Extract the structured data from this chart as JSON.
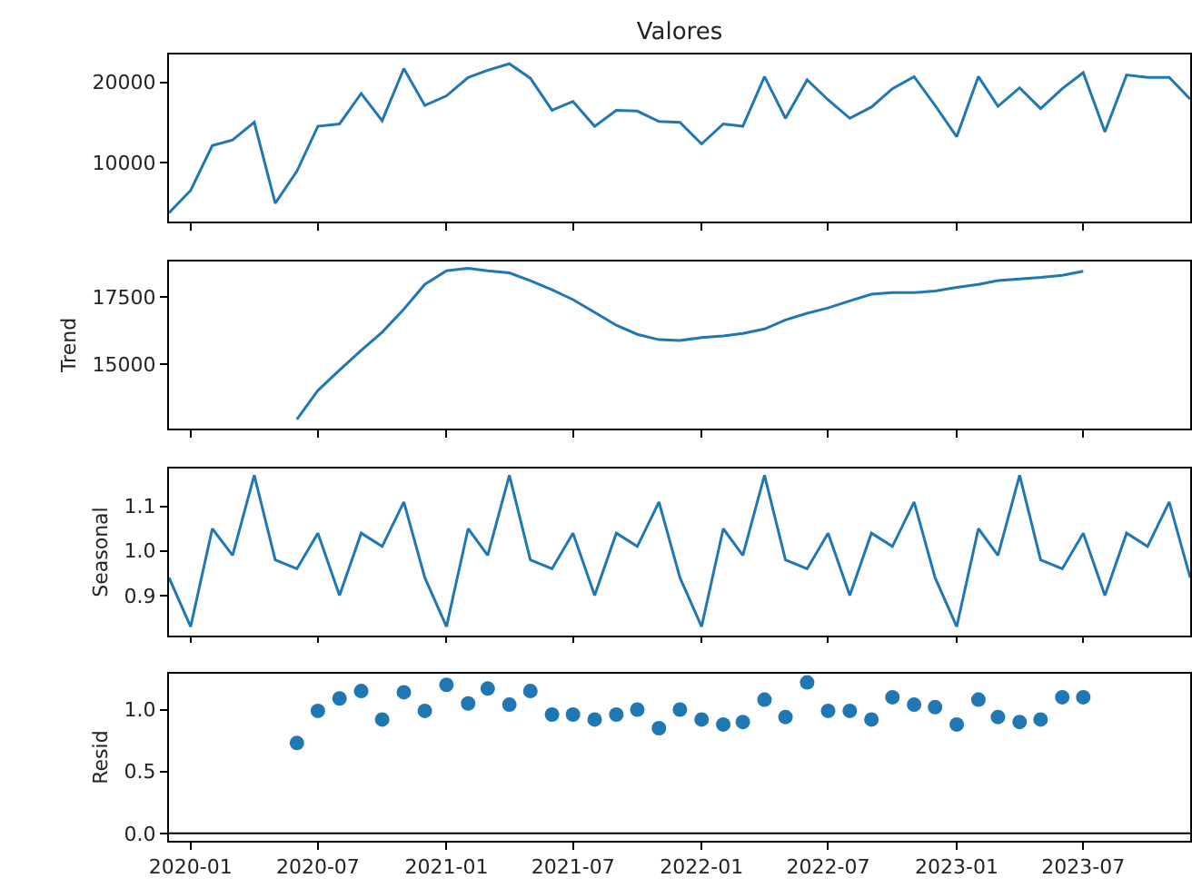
{
  "chart_data": [
    {
      "type": "line",
      "title": "Valores",
      "x": [
        "2019-12",
        "2020-01",
        "2020-02",
        "2020-03",
        "2020-04",
        "2020-05",
        "2020-06",
        "2020-07",
        "2020-08",
        "2020-09",
        "2020-10",
        "2020-11",
        "2020-12",
        "2021-01",
        "2021-02",
        "2021-03",
        "2021-04",
        "2021-05",
        "2021-06",
        "2021-07",
        "2021-08",
        "2021-09",
        "2021-10",
        "2021-11",
        "2021-12",
        "2022-01",
        "2022-02",
        "2022-03",
        "2022-04",
        "2022-05",
        "2022-06",
        "2022-07",
        "2022-08",
        "2022-09",
        "2022-10",
        "2022-11",
        "2022-12",
        "2023-01",
        "2023-02",
        "2023-03",
        "2023-04",
        "2023-05",
        "2023-06",
        "2023-07",
        "2023-08",
        "2023-09",
        "2023-10",
        "2023-11",
        "2023-12"
      ],
      "series": [
        {
          "color": "#1f77b4",
          "values": [
            3700,
            6500,
            12100,
            12800,
            15000,
            4900,
            8900,
            14500,
            14800,
            18600,
            15200,
            21700,
            17100,
            18300,
            20600,
            21500,
            22300,
            20500,
            16500,
            17600,
            14500,
            16500,
            16400,
            15100,
            15000,
            12300,
            14800,
            14500,
            20700,
            15500,
            20300,
            17800,
            15500,
            16900,
            19200,
            20700,
            17100,
            13200,
            20700,
            17000,
            19300,
            16700,
            19200,
            21200,
            13800,
            20900,
            20600,
            20600,
            17900
          ]
        }
      ],
      "xlim": [
        "2019-12",
        "2023-12"
      ],
      "xticks": [
        "2020-01",
        "2020-07",
        "2021-01",
        "2021-07",
        "2022-01",
        "2022-07",
        "2023-01",
        "2023-07"
      ],
      "ylim": [
        2620,
        23460
      ],
      "yticks": [
        10000,
        20000
      ],
      "tick_labels": "y"
    },
    {
      "type": "line",
      "ylabel": "Trend",
      "x": [
        "2020-06",
        "2020-07",
        "2020-08",
        "2020-09",
        "2020-10",
        "2020-11",
        "2020-12",
        "2021-01",
        "2021-02",
        "2021-03",
        "2021-04",
        "2021-05",
        "2021-06",
        "2021-07",
        "2021-08",
        "2021-09",
        "2021-10",
        "2021-11",
        "2021-12",
        "2022-01",
        "2022-02",
        "2022-03",
        "2022-04",
        "2022-05",
        "2022-06",
        "2022-07",
        "2022-08",
        "2022-09",
        "2022-10",
        "2022-11",
        "2022-12",
        "2023-01",
        "2023-02",
        "2023-03",
        "2023-04",
        "2023-05",
        "2023-06",
        "2023-07"
      ],
      "series": [
        {
          "color": "#1f77b4",
          "values": [
            12930,
            14010,
            14770,
            15510,
            16190,
            17050,
            17980,
            18490,
            18580,
            18490,
            18410,
            18120,
            17780,
            17410,
            16930,
            16450,
            16110,
            15910,
            15880,
            15990,
            16050,
            16140,
            16310,
            16650,
            16900,
            17100,
            17360,
            17610,
            17670,
            17670,
            17730,
            17870,
            17980,
            18120,
            18180,
            18240,
            18320,
            18470
          ]
        }
      ],
      "xlim": [
        "2019-12",
        "2023-12"
      ],
      "xticks": [
        "2020-01",
        "2020-07",
        "2021-01",
        "2021-07",
        "2022-01",
        "2022-07",
        "2023-01",
        "2023-07"
      ],
      "ylim": [
        12585,
        18835
      ],
      "yticks": [
        15000,
        17500
      ],
      "tick_labels": "y"
    },
    {
      "type": "line",
      "ylabel": "Seasonal",
      "x": [
        "2019-12",
        "2020-01",
        "2020-02",
        "2020-03",
        "2020-04",
        "2020-05",
        "2020-06",
        "2020-07",
        "2020-08",
        "2020-09",
        "2020-10",
        "2020-11",
        "2020-12",
        "2021-01",
        "2021-02",
        "2021-03",
        "2021-04",
        "2021-05",
        "2021-06",
        "2021-07",
        "2021-08",
        "2021-09",
        "2021-10",
        "2021-11",
        "2021-12",
        "2022-01",
        "2022-02",
        "2022-03",
        "2022-04",
        "2022-05",
        "2022-06",
        "2022-07",
        "2022-08",
        "2022-09",
        "2022-10",
        "2022-11",
        "2022-12",
        "2023-01",
        "2023-02",
        "2023-03",
        "2023-04",
        "2023-05",
        "2023-06",
        "2023-07",
        "2023-08",
        "2023-09",
        "2023-10",
        "2023-11",
        "2023-12"
      ],
      "series": [
        {
          "color": "#1f77b4",
          "values": [
            0.94,
            0.83,
            1.05,
            0.99,
            1.17,
            0.98,
            0.96,
            1.04,
            0.9,
            1.04,
            1.01,
            1.11,
            0.94,
            0.83,
            1.05,
            0.99,
            1.17,
            0.98,
            0.96,
            1.04,
            0.9,
            1.04,
            1.01,
            1.11,
            0.94,
            0.83,
            1.05,
            0.99,
            1.17,
            0.98,
            0.96,
            1.04,
            0.9,
            1.04,
            1.01,
            1.11,
            0.94,
            0.83,
            1.05,
            0.99,
            1.17,
            0.98,
            0.96,
            1.04,
            0.9,
            1.04,
            1.01,
            1.11,
            0.94
          ]
        }
      ],
      "xlim": [
        "2019-12",
        "2023-12"
      ],
      "xticks": [
        "2020-01",
        "2020-07",
        "2021-01",
        "2021-07",
        "2022-01",
        "2022-07",
        "2023-01",
        "2023-07"
      ],
      "ylim": [
        0.81,
        1.185
      ],
      "yticks": [
        0.9,
        {
          "value": 1.0,
          "label": "1.0"
        },
        1.1
      ],
      "tick_labels": "y"
    },
    {
      "type": "scatter",
      "ylabel": "Resid",
      "marker": "circle",
      "x": [
        "2020-06",
        "2020-07",
        "2020-08",
        "2020-09",
        "2020-10",
        "2020-11",
        "2020-12",
        "2021-01",
        "2021-02",
        "2021-03",
        "2021-04",
        "2021-05",
        "2021-06",
        "2021-07",
        "2021-08",
        "2021-09",
        "2021-10",
        "2021-11",
        "2021-12",
        "2022-01",
        "2022-02",
        "2022-03",
        "2022-04",
        "2022-05",
        "2022-06",
        "2022-07",
        "2022-08",
        "2022-09",
        "2022-10",
        "2022-11",
        "2022-12",
        "2023-01",
        "2023-02",
        "2023-03",
        "2023-04",
        "2023-05",
        "2023-06",
        "2023-07"
      ],
      "series": [
        {
          "color": "#1f77b4",
          "values": [
            0.73,
            0.99,
            1.09,
            1.15,
            0.92,
            1.14,
            0.99,
            1.2,
            1.05,
            1.17,
            1.04,
            1.15,
            0.96,
            0.96,
            0.92,
            0.96,
            1.0,
            0.85,
            1.0,
            0.92,
            0.88,
            0.9,
            1.08,
            0.94,
            1.22,
            0.99,
            0.99,
            0.92,
            1.1,
            1.04,
            1.02,
            0.88,
            1.08,
            0.94,
            0.9,
            0.92,
            1.1,
            1.1
          ]
        }
      ],
      "xlim": [
        "2019-12",
        "2023-12"
      ],
      "xticks": [
        "2020-01",
        "2020-07",
        "2021-01",
        "2021-07",
        "2022-01",
        "2022-07",
        "2023-01",
        "2023-07"
      ],
      "ylim": [
        -0.06,
        1.29
      ],
      "yticks": [
        {
          "value": 0,
          "label": "0.0"
        },
        {
          "value": 0.5,
          "label": "0.5"
        },
        {
          "value": 1.0,
          "label": "1.0"
        }
      ],
      "ref_lines": [
        {
          "axis": "y",
          "value": 0,
          "color": "#000000"
        }
      ]
    }
  ]
}
